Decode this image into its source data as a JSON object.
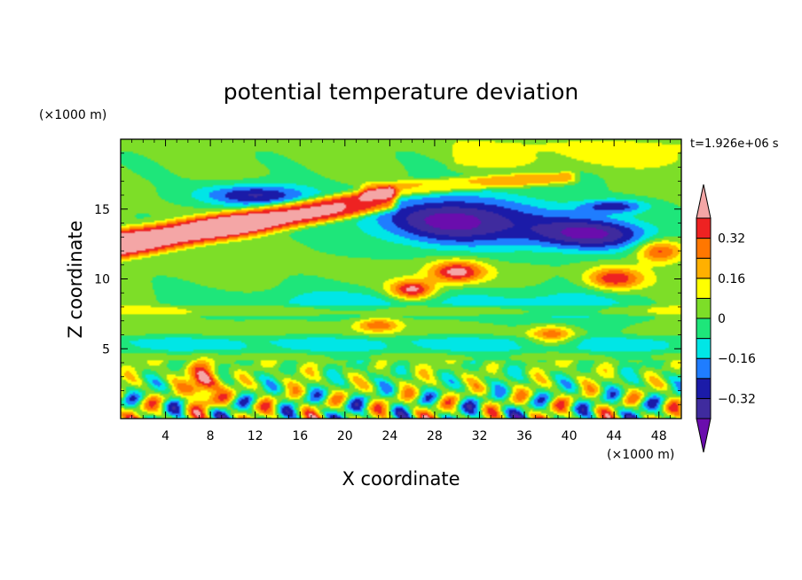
{
  "chart_data": {
    "type": "heatmap",
    "title": "potential temperature deviation",
    "xlabel": "X coordinate",
    "ylabel": "Z coordinate",
    "x_unit_label": "(×1000 m)",
    "y_unit_label": "(×1000 m)",
    "time_label": "t=1.926e+06 s",
    "xlim": [
      0,
      50
    ],
    "ylim": [
      0,
      20
    ],
    "x_ticks": [
      4,
      8,
      12,
      16,
      20,
      24,
      28,
      32,
      36,
      40,
      44,
      48
    ],
    "y_ticks": [
      5,
      10,
      15
    ],
    "colorbar": {
      "levels": [
        -0.4,
        -0.32,
        -0.24,
        -0.16,
        -0.08,
        0,
        0.08,
        0.16,
        0.24,
        0.32,
        0.4
      ],
      "labels": [
        "−0.32",
        "−0.16",
        "0",
        "0.16",
        "0.32"
      ],
      "label_values": [
        -0.32,
        -0.16,
        0,
        0.16,
        0.32
      ],
      "colors": [
        "#6a0dad",
        "#3f2b9e",
        "#1b1ba8",
        "#1f7dff",
        "#00e6e6",
        "#1ee67a",
        "#7dde28",
        "#ffff00",
        "#ffb000",
        "#ff7700",
        "#ee2222",
        "#f4a6a6"
      ],
      "extend": "both"
    },
    "features": [
      {
        "kind": "band",
        "value": 0.45,
        "x": [
          0,
          24
        ],
        "z_start": [
          11.5,
          15.0
        ],
        "z_end": [
          13.5,
          16.5
        ]
      },
      {
        "kind": "band",
        "value": 0.2,
        "x": [
          22,
          40
        ],
        "z_start": [
          15.8,
          17.0
        ],
        "z_end": [
          16.8,
          17.6
        ]
      },
      {
        "kind": "blob",
        "value": -0.45,
        "x": 30,
        "z": 14.2,
        "rx": 8,
        "rz": 1.8
      },
      {
        "kind": "blob",
        "value": -0.4,
        "x": 42,
        "z": 13.2,
        "rx": 6,
        "rz": 1.2
      },
      {
        "kind": "blob",
        "value": -0.35,
        "x": 12,
        "z": 16.0,
        "rx": 5,
        "rz": 0.8
      },
      {
        "kind": "blob",
        "value": -0.3,
        "x": 44,
        "z": 15.2,
        "rx": 3,
        "rz": 0.5
      },
      {
        "kind": "blob",
        "value": 0.45,
        "x": 30,
        "z": 10.5,
        "rx": 2.5,
        "rz": 0.8
      },
      {
        "kind": "blob",
        "value": 0.45,
        "x": 26,
        "z": 9.2,
        "rx": 2,
        "rz": 0.7
      },
      {
        "kind": "blob",
        "value": 0.4,
        "x": 44,
        "z": 10.0,
        "rx": 2.5,
        "rz": 0.8
      },
      {
        "kind": "blob",
        "value": 0.35,
        "x": 48,
        "z": 12.0,
        "rx": 2,
        "rz": 0.8
      },
      {
        "kind": "blob",
        "value": 0.3,
        "x": 38.5,
        "z": 6.0,
        "rx": 2,
        "rz": 0.7
      },
      {
        "kind": "blob",
        "value": 0.3,
        "x": 23,
        "z": 6.7,
        "rx": 2,
        "rz": 0.5
      },
      {
        "kind": "blob",
        "value": 0.45,
        "x": 7.5,
        "z": 2.5,
        "rx": 1.3,
        "rz": 1.5
      },
      {
        "kind": "blob",
        "value": -0.15,
        "x": 22,
        "z": 8.3,
        "rx": 14,
        "rz": 1.0
      },
      {
        "kind": "blob",
        "value": -0.15,
        "x": 40,
        "z": 8.0,
        "rx": 5,
        "rz": 1.5
      },
      {
        "kind": "band",
        "value": -0.12,
        "x": [
          0,
          50
        ],
        "z_start": [
          5.8,
          5.8
        ],
        "z_end": [
          4.8,
          4.8
        ]
      },
      {
        "kind": "band",
        "value": 0.1,
        "x": [
          0,
          50
        ],
        "z_start": [
          7.5,
          7.5
        ],
        "z_end": [
          8.0,
          8.0
        ]
      },
      {
        "kind": "band",
        "value": 0.08,
        "x": [
          30,
          50
        ],
        "z_start": [
          18.0,
          18.0
        ],
        "z_end": [
          20.0,
          20.0
        ]
      }
    ]
  }
}
